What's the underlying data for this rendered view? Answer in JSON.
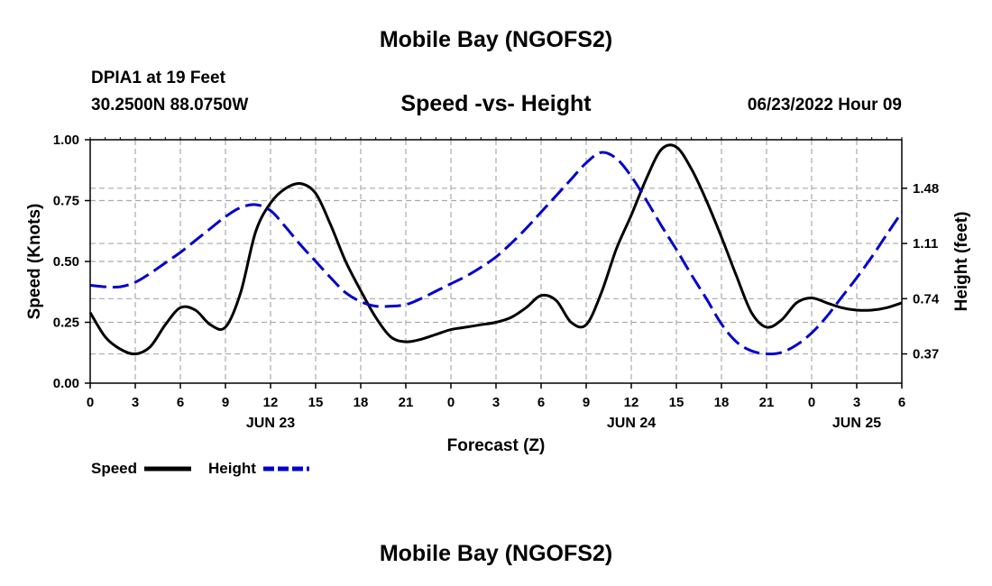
{
  "header": {
    "title": "Mobile Bay (NGOFS2)",
    "station": "DPIA1 at 19 Feet",
    "coordinates": "30.2500N  88.0750W",
    "chart_title": "Speed -vs- Height",
    "datetime": "06/23/2022 Hour 09"
  },
  "footer": {
    "title": "Mobile Bay (NGOFS2)"
  },
  "colors": {
    "speed": "#000000",
    "height": "#0000cc",
    "grid": "#aaaaaa"
  },
  "chart_data": {
    "type": "line",
    "title": "Speed -vs- Height",
    "xlabel": "Forecast (Z)",
    "ylabel": "Speed (Knots)",
    "y2label": "Height (feet)",
    "x_range_hours": [
      0,
      54
    ],
    "x_ticks": [
      {
        "hour": 0,
        "label": "0"
      },
      {
        "hour": 3,
        "label": "3"
      },
      {
        "hour": 6,
        "label": "6"
      },
      {
        "hour": 9,
        "label": "9"
      },
      {
        "hour": 12,
        "label": "12"
      },
      {
        "hour": 15,
        "label": "15"
      },
      {
        "hour": 18,
        "label": "18"
      },
      {
        "hour": 21,
        "label": "21"
      },
      {
        "hour": 24,
        "label": "0"
      },
      {
        "hour": 27,
        "label": "3"
      },
      {
        "hour": 30,
        "label": "6"
      },
      {
        "hour": 33,
        "label": "9"
      },
      {
        "hour": 36,
        "label": "12"
      },
      {
        "hour": 39,
        "label": "15"
      },
      {
        "hour": 42,
        "label": "18"
      },
      {
        "hour": 45,
        "label": "21"
      },
      {
        "hour": 48,
        "label": "0"
      },
      {
        "hour": 51,
        "label": "3"
      },
      {
        "hour": 54,
        "label": "6"
      }
    ],
    "date_labels": [
      {
        "hour": 12,
        "label": "JUN 23"
      },
      {
        "hour": 36,
        "label": "JUN 24"
      },
      {
        "hour": 51,
        "label": "JUN 25"
      }
    ],
    "ylim": [
      0,
      1
    ],
    "y_ticks": [
      {
        "value": 0,
        "label": "0.00"
      },
      {
        "value": 0.25,
        "label": "0.25"
      },
      {
        "value": 0.5,
        "label": "0.50"
      },
      {
        "value": 0.75,
        "label": "0.75"
      },
      {
        "value": 1,
        "label": "1.00"
      }
    ],
    "y2lim": [
      0.174,
      1.805
    ],
    "y2_ticks": [
      {
        "value": 0.37,
        "label": "0.37"
      },
      {
        "value": 0.74,
        "label": "0.74"
      },
      {
        "value": 1.11,
        "label": "1.11"
      },
      {
        "value": 1.48,
        "label": "1.48"
      }
    ],
    "grid": true,
    "legend_position": "bottom-left",
    "series": [
      {
        "name": "Speed",
        "axis": "left",
        "style": "solid",
        "x": [
          0,
          1,
          2,
          3,
          4,
          5,
          6,
          7,
          8,
          9,
          10,
          11,
          12,
          13,
          14,
          15,
          16,
          17,
          18,
          19,
          20,
          21,
          22,
          23,
          24,
          25,
          26,
          27,
          28,
          29,
          30,
          31,
          32,
          33,
          34,
          35,
          36,
          37,
          38,
          39,
          40,
          41,
          42,
          43,
          44,
          45,
          46,
          47,
          48,
          49,
          50,
          51,
          52,
          53,
          54
        ],
        "values": [
          0.29,
          0.19,
          0.14,
          0.12,
          0.15,
          0.24,
          0.31,
          0.3,
          0.24,
          0.23,
          0.37,
          0.62,
          0.74,
          0.8,
          0.82,
          0.78,
          0.65,
          0.5,
          0.38,
          0.27,
          0.19,
          0.17,
          0.18,
          0.2,
          0.22,
          0.23,
          0.24,
          0.25,
          0.27,
          0.31,
          0.36,
          0.34,
          0.25,
          0.24,
          0.37,
          0.55,
          0.69,
          0.84,
          0.96,
          0.97,
          0.88,
          0.75,
          0.6,
          0.44,
          0.29,
          0.23,
          0.26,
          0.33,
          0.35,
          0.33,
          0.31,
          0.3,
          0.3,
          0.31,
          0.33
        ]
      },
      {
        "name": "Height",
        "axis": "right",
        "style": "dashed",
        "x": [
          0,
          1,
          2,
          3,
          4,
          5,
          6,
          7,
          8,
          9,
          10,
          11,
          12,
          13,
          14,
          15,
          16,
          17,
          18,
          19,
          20,
          21,
          22,
          23,
          24,
          25,
          26,
          27,
          28,
          29,
          30,
          31,
          32,
          33,
          34,
          35,
          36,
          37,
          38,
          39,
          40,
          41,
          42,
          43,
          44,
          45,
          46,
          47,
          48,
          49,
          50,
          51,
          52,
          53,
          54
        ],
        "values": [
          0.83,
          0.82,
          0.82,
          0.85,
          0.91,
          0.98,
          1.05,
          1.13,
          1.21,
          1.29,
          1.35,
          1.37,
          1.33,
          1.22,
          1.1,
          0.99,
          0.88,
          0.78,
          0.72,
          0.69,
          0.69,
          0.7,
          0.74,
          0.79,
          0.84,
          0.89,
          0.95,
          1.02,
          1.11,
          1.21,
          1.32,
          1.43,
          1.54,
          1.65,
          1.72,
          1.68,
          1.56,
          1.4,
          1.23,
          1.07,
          0.9,
          0.74,
          0.57,
          0.45,
          0.39,
          0.37,
          0.38,
          0.43,
          0.51,
          0.62,
          0.75,
          0.88,
          1.02,
          1.17,
          1.32
        ]
      }
    ]
  }
}
